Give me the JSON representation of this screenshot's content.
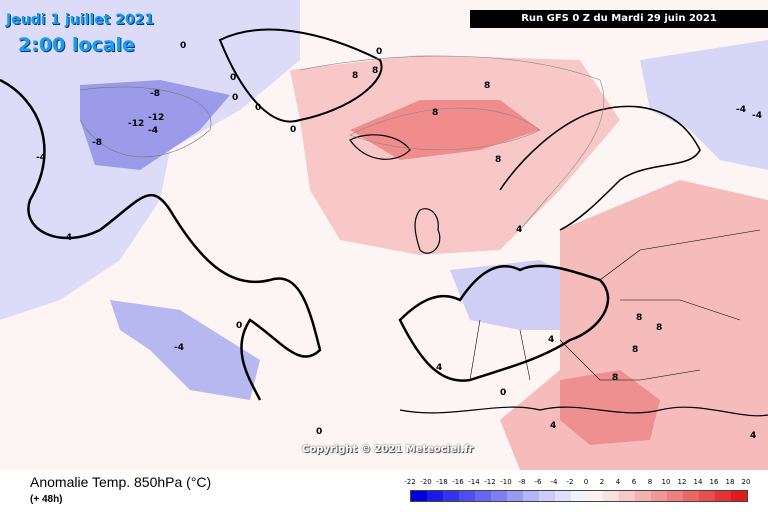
{
  "header": {
    "date": "Jeudi 1 juillet 2021",
    "time": "2:00 locale",
    "run": "Run GFS 0 Z du Mardi 29 juin 2021"
  },
  "copyright": "Copyright © 2021 Meteociel.fr",
  "footer": {
    "parameter": "Anomalie Temp. 850hPa (°C)",
    "lead_time": "(+ 48h)"
  },
  "legend": {
    "ticks": [
      "-22",
      "-20",
      "-18",
      "-16",
      "-14",
      "-12",
      "-10",
      "-8",
      "-6",
      "-4",
      "-2",
      "0",
      "2",
      "4",
      "6",
      "8",
      "10",
      "12",
      "14",
      "16",
      "18",
      "20"
    ],
    "colors": [
      "#0000e0",
      "#1a1aeb",
      "#3333f0",
      "#4d4df2",
      "#6666f2",
      "#7f7ff4",
      "#9999f6",
      "#b3b3f8",
      "#ccccfa",
      "#e0e0fb",
      "#f2f2fd",
      "#fdf0f0",
      "#fbe0e0",
      "#f8c8c8",
      "#f5b0b0",
      "#f29898",
      "#ef8080",
      "#ec6666",
      "#e94d4d",
      "#e63333",
      "#e31a1a"
    ]
  },
  "contour_labels": [
    {
      "text": "0"
    },
    {
      "text": "0"
    },
    {
      "text": "0"
    },
    {
      "text": "8"
    },
    {
      "text": "8"
    },
    {
      "text": "8"
    },
    {
      "text": "8"
    },
    {
      "text": "8"
    },
    {
      "text": "-12"
    },
    {
      "text": "-12"
    },
    {
      "text": "-8"
    },
    {
      "text": "-8"
    },
    {
      "text": "-4"
    },
    {
      "text": "-4"
    },
    {
      "text": "-4"
    },
    {
      "text": "-4"
    },
    {
      "text": "0"
    },
    {
      "text": "0"
    },
    {
      "text": "-4"
    },
    {
      "text": "0"
    },
    {
      "text": "0"
    },
    {
      "text": "4"
    },
    {
      "text": "4"
    },
    {
      "text": "8"
    },
    {
      "text": "8"
    },
    {
      "text": "8"
    },
    {
      "text": "8"
    },
    {
      "text": "4"
    },
    {
      "text": "0"
    },
    {
      "text": "4"
    },
    {
      "text": "0"
    },
    {
      "text": "4"
    },
    {
      "text": "-4"
    }
  ]
}
